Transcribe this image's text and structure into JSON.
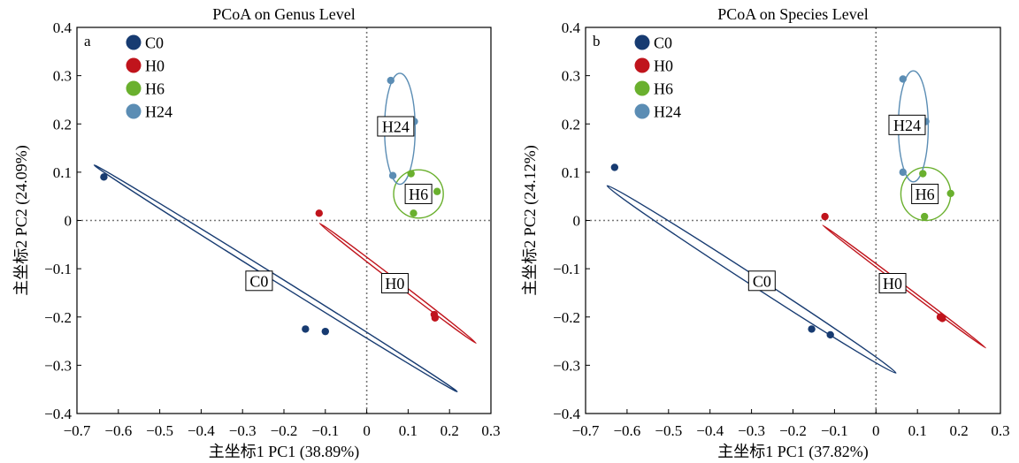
{
  "chart_data": [
    {
      "type": "scatter",
      "panel_letter": "a",
      "title": "PCoA on Genus Level",
      "xlabel": "主坐标1 PC1 (38.89%)",
      "ylabel": "主坐标2 PC2 (24.09%)",
      "xlim": [
        -0.7,
        0.3
      ],
      "ylim": [
        -0.4,
        0.4
      ],
      "xticks": [
        "−0.7",
        "−0.6",
        "−0.5",
        "−0.4",
        "−0.3",
        "−0.2",
        "−0.1",
        "0",
        "0.1",
        "0.2",
        "0.3"
      ],
      "yticks": [
        "0.4",
        "0.3",
        "0.2",
        "0.1",
        "0",
        "−0.1",
        "−0.2",
        "−0.3",
        "−0.4"
      ],
      "legend_position": "top-left",
      "reference_lines": {
        "x": 0,
        "y": 0,
        "style": "dotted"
      },
      "series": [
        {
          "name": "C0",
          "color": "#173b71",
          "points": [
            [
              -0.635,
              0.09
            ],
            [
              -0.148,
              -0.225
            ],
            [
              -0.1,
              -0.23
            ]
          ],
          "ellipse": {
            "cx": -0.22,
            "cy": -0.12,
            "rx": 0.517,
            "ry": 0.006,
            "angle_deg": -32
          },
          "label": "C0",
          "label_at": [
            -0.26,
            -0.125
          ]
        },
        {
          "name": "H0",
          "color": "#c0141c",
          "points": [
            [
              -0.115,
              0.015
            ],
            [
              0.163,
              -0.195
            ],
            [
              0.165,
              -0.202
            ]
          ],
          "ellipse": {
            "cx": 0.075,
            "cy": -0.13,
            "rx": 0.238,
            "ry": 0.004,
            "angle_deg": -37.5
          },
          "label": "H0",
          "label_at": [
            0.068,
            -0.13
          ]
        },
        {
          "name": "H6",
          "color": "#6ab02e",
          "points": [
            [
              0.107,
              0.097
            ],
            [
              0.17,
              0.06
            ],
            [
              0.113,
              0.015
            ]
          ],
          "ellipse": {
            "cx": 0.125,
            "cy": 0.055,
            "rx": 0.06,
            "ry": 0.05,
            "angle_deg": 0
          },
          "label": "H6",
          "label_at": [
            0.125,
            0.055
          ]
        },
        {
          "name": "H24",
          "color": "#5b8db4",
          "points": [
            [
              0.058,
              0.29
            ],
            [
              0.115,
              0.205
            ],
            [
              0.063,
              0.093
            ]
          ],
          "ellipse": {
            "cx": 0.08,
            "cy": 0.19,
            "rx": 0.037,
            "ry": 0.115,
            "angle_deg": 0
          },
          "label": "H24",
          "label_at": [
            0.07,
            0.195
          ]
        }
      ]
    },
    {
      "type": "scatter",
      "panel_letter": "b",
      "title": "PCoA on Species Level",
      "xlabel": "主坐标1 PC1 (37.82%)",
      "ylabel": "主坐标2 PC2 (24.12%)",
      "xlim": [
        -0.7,
        0.3
      ],
      "ylim": [
        -0.4,
        0.4
      ],
      "xticks": [
        "−0.7",
        "−0.6",
        "−0.5",
        "−0.4",
        "−0.3",
        "−0.2",
        "−0.1",
        "0",
        "0.1",
        "0.2",
        "0.3"
      ],
      "yticks": [
        "0.4",
        "0.3",
        "0.2",
        "0.1",
        "0",
        "−0.1",
        "−0.2",
        "−0.3",
        "−0.4"
      ],
      "legend_position": "top-left",
      "reference_lines": {
        "x": 0,
        "y": 0,
        "style": "dotted"
      },
      "series": [
        {
          "name": "C0",
          "color": "#173b71",
          "points": [
            [
              -0.63,
              0.11
            ],
            [
              -0.155,
              -0.225
            ],
            [
              -0.11,
              -0.237
            ]
          ],
          "ellipse": {
            "cx": -0.3,
            "cy": -0.122,
            "rx": 0.415,
            "ry": 0.01,
            "angle_deg": -33
          },
          "label": "C0",
          "label_at": [
            -0.275,
            -0.125
          ]
        },
        {
          "name": "H0",
          "color": "#c0141c",
          "points": [
            [
              -0.123,
              0.008
            ],
            [
              0.155,
              -0.2
            ],
            [
              0.16,
              -0.203
            ]
          ],
          "ellipse": {
            "cx": 0.068,
            "cy": -0.137,
            "rx": 0.246,
            "ry": 0.003,
            "angle_deg": -37
          },
          "label": "H0",
          "label_at": [
            0.04,
            -0.13
          ]
        },
        {
          "name": "H6",
          "color": "#6ab02e",
          "points": [
            [
              0.113,
              0.097
            ],
            [
              0.18,
              0.056
            ],
            [
              0.117,
              0.008
            ]
          ],
          "ellipse": {
            "cx": 0.12,
            "cy": 0.055,
            "rx": 0.06,
            "ry": 0.055,
            "angle_deg": 0
          },
          "label": "H6",
          "label_at": [
            0.118,
            0.055
          ]
        },
        {
          "name": "H24",
          "color": "#5b8db4",
          "points": [
            [
              0.065,
              0.293
            ],
            [
              0.12,
              0.205
            ],
            [
              0.065,
              0.1
            ]
          ],
          "ellipse": {
            "cx": 0.09,
            "cy": 0.195,
            "rx": 0.036,
            "ry": 0.115,
            "angle_deg": 0
          },
          "label": "H24",
          "label_at": [
            0.075,
            0.198
          ]
        }
      ]
    }
  ]
}
